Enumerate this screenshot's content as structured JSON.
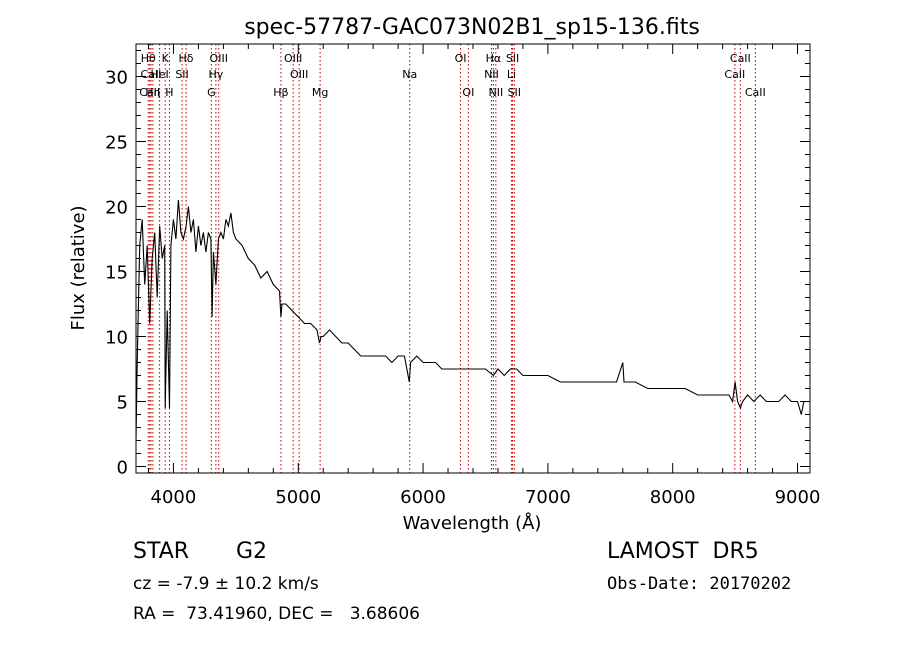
{
  "chart_data": {
    "type": "line",
    "title": "spec-57787-GAC073N02B1_sp15-136.fits",
    "xlabel": "Wavelength (Å)",
    "ylabel": "Flux (relative)",
    "xlim": [
      3700,
      9100
    ],
    "ylim": [
      -0.5,
      32.5
    ],
    "x_ticks": [
      4000,
      5000,
      6000,
      7000,
      8000,
      9000
    ],
    "y_ticks": [
      0,
      5,
      10,
      15,
      20,
      25,
      30
    ],
    "grid": false,
    "legend": "none",
    "series": [
      {
        "x": [
          3700,
          3710,
          3730,
          3750,
          3770,
          3790,
          3810,
          3830,
          3850,
          3870,
          3890,
          3910,
          3930,
          3934,
          3950,
          3968,
          3980,
          4000,
          4020,
          4040,
          4060,
          4080,
          4101,
          4120,
          4140,
          4160,
          4180,
          4200,
          4220,
          4240,
          4260,
          4280,
          4300,
          4310,
          4320,
          4340,
          4360,
          4380,
          4400,
          4420,
          4440,
          4460,
          4480,
          4500,
          4550,
          4600,
          4650,
          4700,
          4750,
          4800,
          4850,
          4861,
          4870,
          4900,
          4950,
          5000,
          5050,
          5100,
          5150,
          5170,
          5183,
          5200,
          5250,
          5300,
          5350,
          5400,
          5450,
          5500,
          5550,
          5600,
          5650,
          5700,
          5750,
          5800,
          5850,
          5890,
          5900,
          5950,
          6000,
          6050,
          6100,
          6150,
          6200,
          6250,
          6300,
          6350,
          6400,
          6450,
          6500,
          6563,
          6600,
          6650,
          6700,
          6750,
          6800,
          6900,
          7000,
          7100,
          7200,
          7300,
          7400,
          7500,
          7550,
          7600,
          7610,
          7650,
          7700,
          7800,
          7900,
          8000,
          8100,
          8200,
          8300,
          8400,
          8450,
          8480,
          8500,
          8520,
          8542,
          8560,
          8600,
          8650,
          8700,
          8750,
          8800,
          8850,
          8900,
          8950,
          9000,
          9030,
          9050
        ],
        "y": [
          2.0,
          8.0,
          17.0,
          19.0,
          14.0,
          17.0,
          11.0,
          16.0,
          18.0,
          13.0,
          18.5,
          16.0,
          17.0,
          4.5,
          12.0,
          4.5,
          17.0,
          19.0,
          17.5,
          20.5,
          18.0,
          17.5,
          18.5,
          20.0,
          18.0,
          19.0,
          16.5,
          18.5,
          17.0,
          18.0,
          16.5,
          18.0,
          17.5,
          11.5,
          16.5,
          14.0,
          17.5,
          18.0,
          17.5,
          19.0,
          18.5,
          19.5,
          18.0,
          17.5,
          17.0,
          16.0,
          15.5,
          14.5,
          15.0,
          14.0,
          13.5,
          11.5,
          12.5,
          12.5,
          12.0,
          11.5,
          11.0,
          11.0,
          10.5,
          9.5,
          10.0,
          10.0,
          10.5,
          10.0,
          9.5,
          9.5,
          9.0,
          8.5,
          8.5,
          8.5,
          8.5,
          8.5,
          8.0,
          8.5,
          8.5,
          6.5,
          8.0,
          8.5,
          8.0,
          8.0,
          8.0,
          7.5,
          7.5,
          7.5,
          7.5,
          7.5,
          7.5,
          7.5,
          7.5,
          7.0,
          7.5,
          7.0,
          7.5,
          7.5,
          7.0,
          7.0,
          7.0,
          6.5,
          6.5,
          6.5,
          6.5,
          6.5,
          6.5,
          8.0,
          6.5,
          6.5,
          6.5,
          6.0,
          6.0,
          6.0,
          6.0,
          5.5,
          5.5,
          5.5,
          5.5,
          5.0,
          6.5,
          5.0,
          4.5,
          5.0,
          5.5,
          5.0,
          5.5,
          5.0,
          5.0,
          5.0,
          5.5,
          5.0,
          5.0,
          4.0,
          5.0
        ]
      }
    ],
    "lines": [
      {
        "label": "Hθ",
        "x": 3798,
        "row": 0
      },
      {
        "label": "CaII",
        "x": 3820,
        "row": 1
      },
      {
        "label": "CaII",
        "x": 3810,
        "row": 2
      },
      {
        "label": "Hη",
        "x": 3835,
        "row": 2
      },
      {
        "label": "HeI",
        "x": 3889,
        "row": 1
      },
      {
        "label": "K",
        "x": 3934,
        "row": 0
      },
      {
        "label": "H",
        "x": 3968,
        "row": 2
      },
      {
        "label": "Hδ",
        "x": 4101,
        "row": 0
      },
      {
        "label": "SII",
        "x": 4069,
        "row": 1
      },
      {
        "label": "OIII",
        "x": 4363,
        "row": 0
      },
      {
        "label": "Hγ",
        "x": 4340,
        "row": 1
      },
      {
        "label": "G",
        "x": 4304,
        "row": 2
      },
      {
        "label": "OIII",
        "x": 4959,
        "row": 0
      },
      {
        "label": "OIII",
        "x": 5007,
        "row": 1
      },
      {
        "label": "Hβ",
        "x": 4861,
        "row": 2
      },
      {
        "label": "Mg",
        "x": 5175,
        "row": 2
      },
      {
        "label": "Na",
        "x": 5893,
        "row": 1
      },
      {
        "label": "OI",
        "x": 6300,
        "row": 0
      },
      {
        "label": "OI",
        "x": 6363,
        "row": 2
      },
      {
        "label": "Hα",
        "x": 6563,
        "row": 0
      },
      {
        "label": "SII",
        "x": 6717,
        "row": 0
      },
      {
        "label": "NII",
        "x": 6548,
        "row": 1
      },
      {
        "label": "Li",
        "x": 6708,
        "row": 1
      },
      {
        "label": "NII",
        "x": 6583,
        "row": 2
      },
      {
        "label": "SII",
        "x": 6731,
        "row": 2
      },
      {
        "label": "CaII",
        "x": 8542,
        "row": 0
      },
      {
        "label": "CaII",
        "x": 8498,
        "row": 1
      },
      {
        "label": "CaII",
        "x": 8662,
        "row": 2
      }
    ]
  },
  "info": {
    "object_class": "STAR",
    "subclass": "G2",
    "survey": "LAMOST  DR5",
    "redshift": "cz = -7.9 ± 10.2 km/s",
    "obs_date": "Obs-Date: 20170202",
    "coords": "RA =  73.41960, DEC =   3.68606"
  }
}
